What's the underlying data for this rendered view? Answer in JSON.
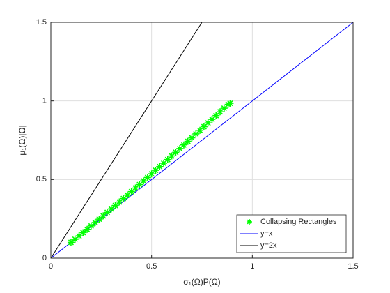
{
  "chart_data": {
    "type": "scatter",
    "xlabel": "σ₁(Ω)P(Ω)",
    "ylabel": "μ₁(Ω)|Ω|",
    "xlim": [
      0,
      1.5
    ],
    "ylim": [
      0,
      1.5
    ],
    "xticks": [
      0,
      0.5,
      1,
      1.5
    ],
    "yticks": [
      0,
      0.5,
      1,
      1.5
    ],
    "grid": true,
    "legend": "lower right",
    "series": [
      {
        "name": "Collapsing Rectangles",
        "type": "scatter",
        "marker": "*",
        "color": "#00ff00",
        "x": [
          0.1,
          0.12,
          0.14,
          0.16,
          0.18,
          0.2,
          0.22,
          0.24,
          0.26,
          0.28,
          0.3,
          0.32,
          0.34,
          0.36,
          0.38,
          0.4,
          0.42,
          0.44,
          0.46,
          0.48,
          0.5,
          0.52,
          0.54,
          0.56,
          0.58,
          0.6,
          0.62,
          0.64,
          0.66,
          0.68,
          0.7,
          0.72,
          0.74,
          0.76,
          0.78,
          0.8,
          0.82,
          0.84,
          0.86,
          0.88,
          0.89
        ],
        "values": [
          0.1,
          0.12,
          0.141,
          0.162,
          0.183,
          0.205,
          0.226,
          0.248,
          0.269,
          0.291,
          0.313,
          0.335,
          0.357,
          0.379,
          0.401,
          0.423,
          0.446,
          0.468,
          0.491,
          0.513,
          0.536,
          0.559,
          0.582,
          0.604,
          0.627,
          0.65,
          0.673,
          0.697,
          0.72,
          0.743,
          0.766,
          0.79,
          0.813,
          0.836,
          0.86,
          0.883,
          0.907,
          0.931,
          0.954,
          0.978,
          0.985
        ]
      },
      {
        "name": "y=x",
        "type": "line",
        "color": "#0000ff",
        "x": [
          0,
          1.5
        ],
        "values": [
          0,
          1.5
        ]
      },
      {
        "name": "y=2x",
        "type": "line",
        "color": "#000000",
        "x": [
          0,
          0.75
        ],
        "values": [
          0,
          1.5
        ]
      }
    ]
  }
}
